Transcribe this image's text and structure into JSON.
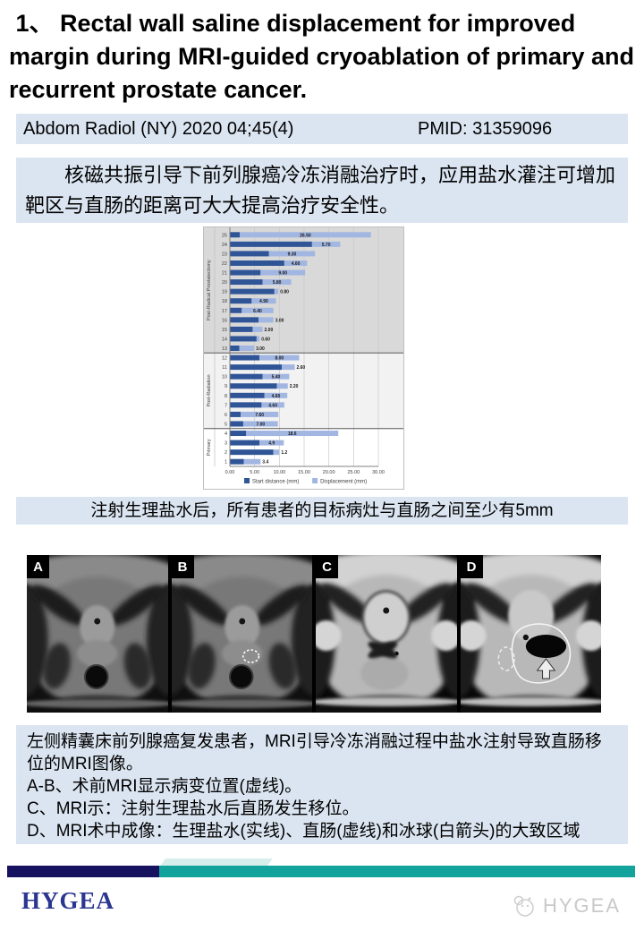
{
  "title": " 1、 Rectal wall saline displacement for improved margin during MRI-guided cryoablation of primary and recurrent prostate cancer.",
  "citation": {
    "journal": "Abdom Radiol (NY) 2020 04;45(4)",
    "pmid": "PMID: 31359096"
  },
  "summary_zh": "核磁共振引导下前列腺癌冷冻消融治疗时，应用盐水灌注可增加靶区与直肠的距离可大大提高治疗安全性。",
  "chart_caption_zh": "注射生理盐水后，所有患者的目标病灶与直肠之间至少有5mm",
  "chart_data": {
    "type": "bar",
    "orientation": "horizontal",
    "stacked": true,
    "xlim": [
      0,
      30
    ],
    "x_ticks": [
      "0.00",
      "5.00",
      "10.00",
      "15.00",
      "20.00",
      "25.00",
      "30.00"
    ],
    "legend": [
      "Start distance (mm)",
      "Displacement (mm)"
    ],
    "colors": {
      "start": "#2F5597",
      "displacement": "#A2B6E2"
    },
    "grid": true,
    "groups": [
      {
        "name": "Post-Radical Prostatectomy",
        "band": "#d9d9d9",
        "patients": [
          {
            "id": 25,
            "start": 2.0,
            "displacement": 26.5,
            "label": "26.50"
          },
          {
            "id": 24,
            "start": 16.6,
            "displacement": 5.7,
            "label": "5.70"
          },
          {
            "id": 23,
            "start": 7.9,
            "displacement": 9.3,
            "label": "9.30"
          },
          {
            "id": 22,
            "start": 11.0,
            "displacement": 4.6,
            "label": "4.60"
          },
          {
            "id": 21,
            "start": 6.2,
            "displacement": 9.0,
            "label": "9.00"
          },
          {
            "id": 20,
            "start": 6.6,
            "displacement": 5.8,
            "label": "5.80"
          },
          {
            "id": 19,
            "start": 9.0,
            "displacement": 0.8,
            "label": "0.80"
          },
          {
            "id": 18,
            "start": 4.4,
            "displacement": 4.9,
            "label": "4.90"
          },
          {
            "id": 17,
            "start": 2.4,
            "displacement": 6.4,
            "label": "6.40"
          },
          {
            "id": 16,
            "start": 5.8,
            "displacement": 3.0,
            "label": "3.00"
          },
          {
            "id": 15,
            "start": 4.6,
            "displacement": 2.0,
            "label": "2.00"
          },
          {
            "id": 14,
            "start": 5.4,
            "displacement": 0.6,
            "label": "0.60"
          },
          {
            "id": 13,
            "start": 1.9,
            "displacement": 3.0,
            "label": "3.00"
          }
        ]
      },
      {
        "name": "Post-Radiation",
        "band": "#f2f2f2",
        "patients": [
          {
            "id": 12,
            "start": 6.0,
            "displacement": 8.0,
            "label": "8.00"
          },
          {
            "id": 11,
            "start": 10.5,
            "displacement": 2.6,
            "label": "2.60"
          },
          {
            "id": 10,
            "start": 6.6,
            "displacement": 5.4,
            "label": "5.40"
          },
          {
            "id": 9,
            "start": 9.5,
            "displacement": 2.2,
            "label": "2.20"
          },
          {
            "id": 8,
            "start": 7.0,
            "displacement": 4.6,
            "label": "4.60"
          },
          {
            "id": 7,
            "start": 6.4,
            "displacement": 4.6,
            "label": "4.60"
          },
          {
            "id": 6,
            "start": 2.2,
            "displacement": 7.6,
            "label": "7.60"
          },
          {
            "id": 5,
            "start": 2.7,
            "displacement": 7.0,
            "label": "7.00"
          }
        ]
      },
      {
        "name": "Primary",
        "band": "#ffffff",
        "patients": [
          {
            "id": 4,
            "start": 3.3,
            "displacement": 18.6,
            "label": "18.6"
          },
          {
            "id": 3,
            "start": 6.0,
            "displacement": 4.9,
            "label": "4.9"
          },
          {
            "id": 2,
            "start": 8.8,
            "displacement": 1.2,
            "label": "1.2"
          },
          {
            "id": 1,
            "start": 2.8,
            "displacement": 3.4,
            "label": "3.4"
          }
        ]
      }
    ]
  },
  "mri": {
    "panels": [
      {
        "label": "A"
      },
      {
        "label": "B"
      },
      {
        "label": "C"
      },
      {
        "label": "D"
      }
    ]
  },
  "figure_caption": {
    "lines": [
      "左侧精囊床前列腺癌复发患者，MRI引导冷冻消融过程中盐水注射导致直肠移位的MRI图像。",
      "A-B、术前MRI显示病变位置(虚线)。",
      "C、MRI示：注射生理盐水后直肠发生移位。",
      "D、MRI术中成像：生理盐水(实线)、直肠(虚线)和冰球(白箭头)的大致区域"
    ]
  },
  "footer": {
    "logo_text": "HYGEA",
    "watermark_text": "HYGEA",
    "navy": "#17125f",
    "teal": "#12a49c"
  }
}
